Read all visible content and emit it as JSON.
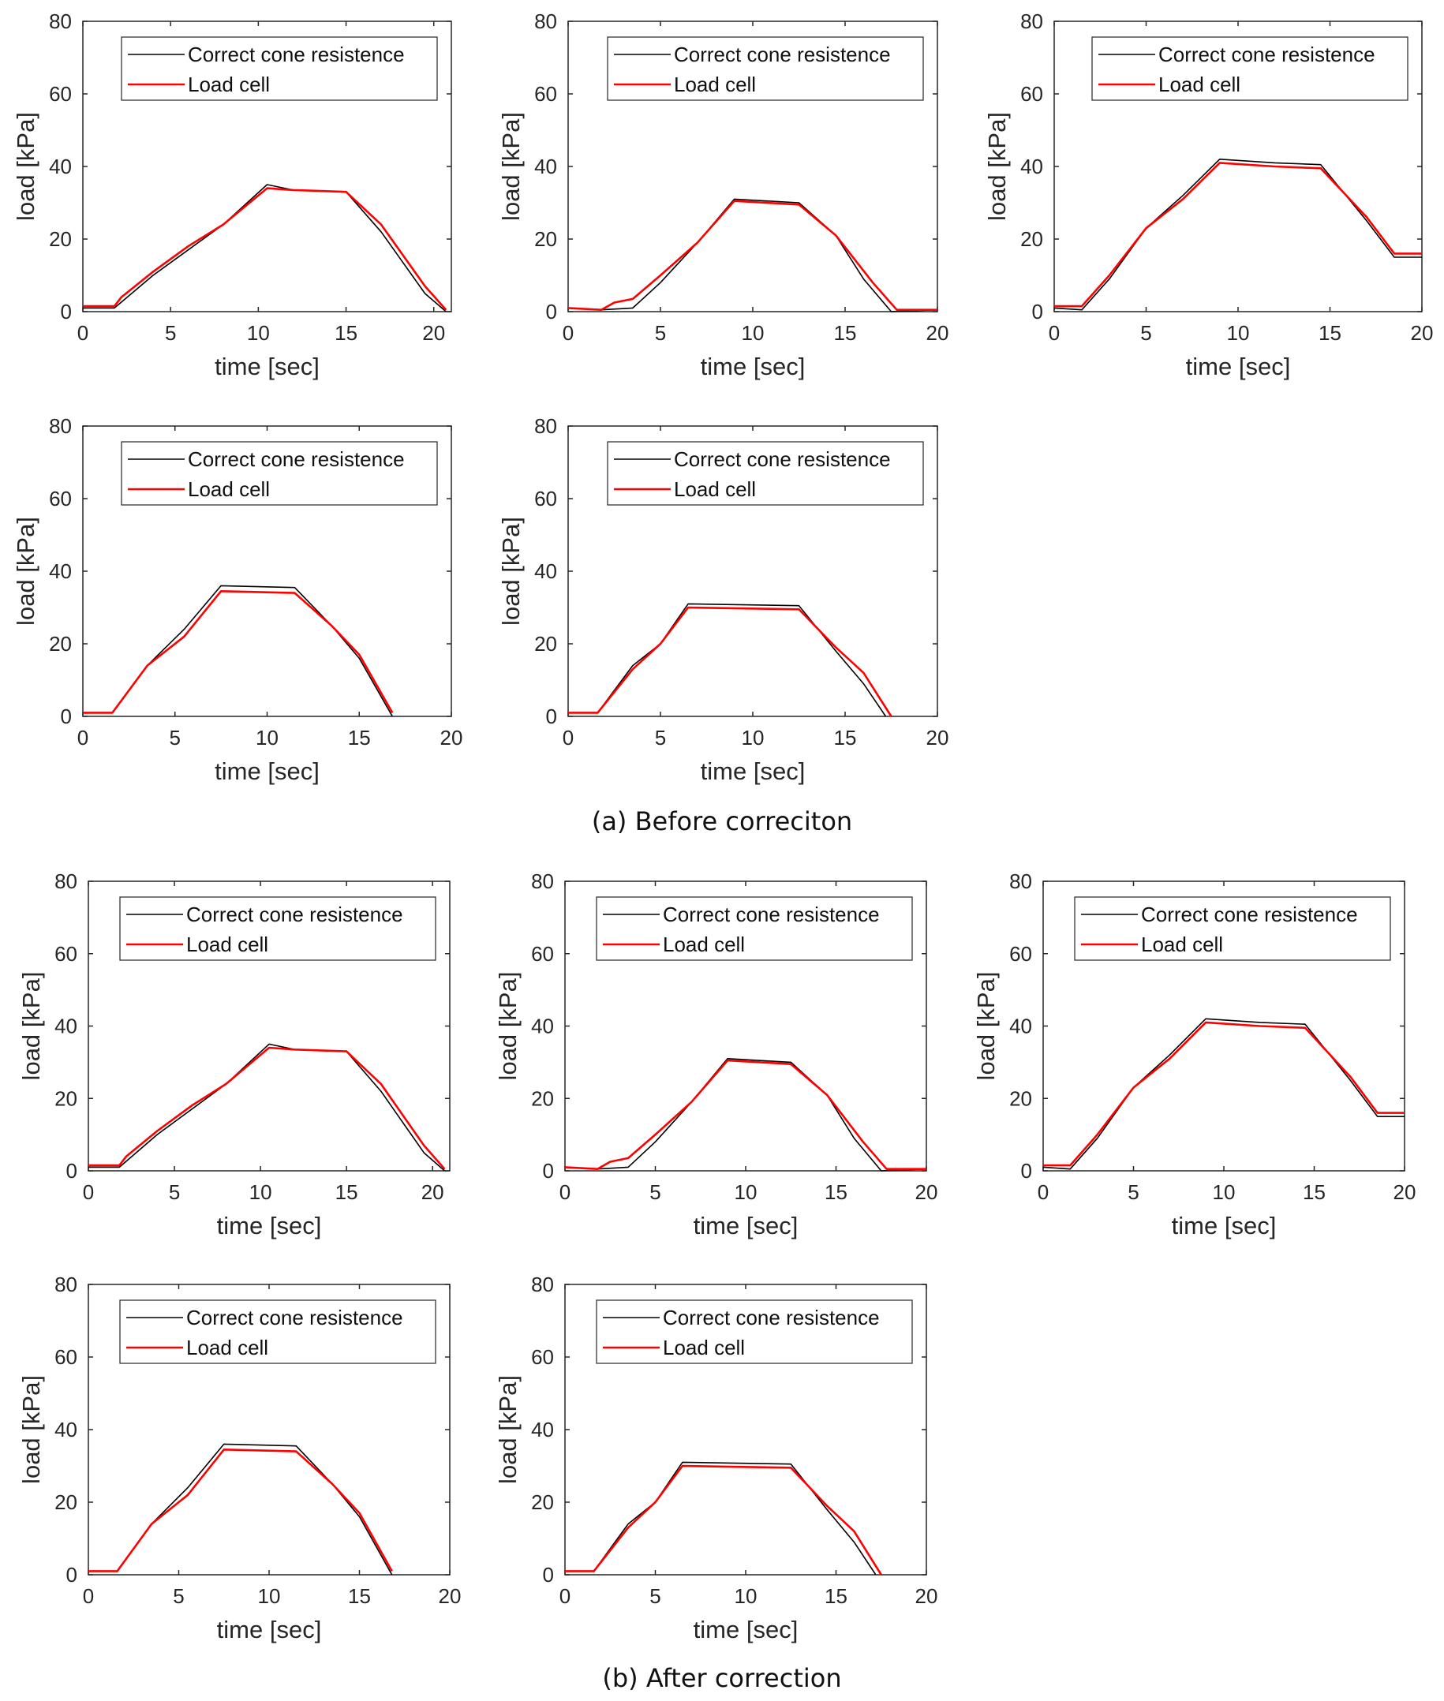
{
  "captions": {
    "a": "(a)  Before correciton",
    "b": "(b)  After correction"
  },
  "colors": {
    "cone": "#000000",
    "load_cell": "#ff0000",
    "axis": "#262626",
    "tick_text": "#262626"
  },
  "chart_data": [
    {
      "id": "a1",
      "group": "a",
      "type": "line",
      "xlabel": "time [sec]",
      "ylabel": "load [kPa]",
      "xlim": [
        0,
        21
      ],
      "ylim": [
        0,
        80
      ],
      "xticks": [
        0,
        5,
        10,
        15,
        20
      ],
      "yticks": [
        0,
        20,
        40,
        60,
        80
      ],
      "legend": [
        "Correct cone resistence",
        "Load cell"
      ],
      "series": [
        {
          "name": "Correct cone resistence",
          "x": [
            0,
            1.8,
            4,
            6,
            8,
            10.5,
            12,
            15,
            17,
            19.5,
            20.7
          ],
          "y": [
            1,
            1,
            10,
            17,
            24,
            35,
            33.5,
            33,
            22,
            5,
            0
          ]
        },
        {
          "name": "Load cell",
          "x": [
            0,
            1.8,
            2.2,
            4,
            6,
            8,
            10.5,
            12,
            15,
            17,
            19.5,
            20.7
          ],
          "y": [
            1.5,
            1.5,
            4,
            11,
            18,
            24,
            34,
            33.5,
            33,
            24,
            7,
            0.5
          ]
        }
      ]
    },
    {
      "id": "a2",
      "group": "a",
      "type": "line",
      "xlabel": "time [sec]",
      "ylabel": "load [kPa]",
      "xlim": [
        0,
        20
      ],
      "ylim": [
        0,
        80
      ],
      "xticks": [
        0,
        5,
        10,
        15,
        20
      ],
      "yticks": [
        0,
        20,
        40,
        60,
        80
      ],
      "legend": [
        "Correct cone resistence",
        "Load cell"
      ],
      "series": [
        {
          "name": "Correct cone resistence",
          "x": [
            0,
            1.8,
            3.5,
            5,
            7,
            9,
            12.5,
            14.5,
            16,
            17.5,
            20
          ],
          "y": [
            1,
            0.5,
            1,
            8,
            19,
            31,
            30,
            21,
            9,
            0,
            0.5
          ]
        },
        {
          "name": "Load cell",
          "x": [
            0,
            1.8,
            2.5,
            3.5,
            5,
            7,
            9,
            12.5,
            14.5,
            16.5,
            17.8,
            20
          ],
          "y": [
            1,
            0.5,
            2.5,
            3.5,
            10,
            19,
            30.5,
            29.5,
            21,
            8,
            0.5,
            0.5
          ]
        }
      ]
    },
    {
      "id": "a3",
      "group": "a",
      "type": "line",
      "xlabel": "time [sec]",
      "ylabel": "load [kPa]",
      "xlim": [
        0,
        20
      ],
      "ylim": [
        0,
        80
      ],
      "xticks": [
        0,
        5,
        10,
        15,
        20
      ],
      "yticks": [
        0,
        20,
        40,
        60,
        80
      ],
      "legend": [
        "Correct cone resistence",
        "Load cell"
      ],
      "series": [
        {
          "name": "Correct cone resistence",
          "x": [
            0,
            1.5,
            3,
            5,
            7,
            9,
            12,
            14.5,
            17,
            18.5,
            20
          ],
          "y": [
            1,
            0.5,
            9,
            23,
            32,
            42,
            41,
            40.5,
            25,
            15,
            15
          ]
        },
        {
          "name": "Load cell",
          "x": [
            0,
            1.5,
            3,
            5,
            7,
            9,
            12,
            14.5,
            17,
            18.5,
            20
          ],
          "y": [
            1.5,
            1.5,
            10,
            23,
            31,
            41,
            40,
            39.5,
            26,
            16,
            16
          ]
        }
      ]
    },
    {
      "id": "a4",
      "group": "a",
      "type": "line",
      "xlabel": "time [sec]",
      "ylabel": "load [kPa]",
      "xlim": [
        0,
        20
      ],
      "ylim": [
        0,
        80
      ],
      "xticks": [
        0,
        5,
        10,
        15,
        20
      ],
      "yticks": [
        0,
        20,
        40,
        60,
        80
      ],
      "legend": [
        "Correct cone resistence",
        "Load cell"
      ],
      "series": [
        {
          "name": "Correct cone resistence",
          "x": [
            0,
            1.6,
            3.5,
            5.5,
            7.5,
            11.5,
            13.5,
            15,
            16.8
          ],
          "y": [
            1,
            1,
            14,
            24,
            36,
            35.5,
            25,
            16,
            0
          ]
        },
        {
          "name": "Load cell",
          "x": [
            0,
            1.6,
            3.5,
            5.5,
            7.5,
            11.5,
            13.5,
            15,
            16.8
          ],
          "y": [
            1,
            1,
            14,
            22,
            34.5,
            34,
            25,
            17,
            1
          ]
        }
      ]
    },
    {
      "id": "a5",
      "group": "a",
      "type": "line",
      "xlabel": "time [sec]",
      "ylabel": "load [kPa]",
      "xlim": [
        0,
        20
      ],
      "ylim": [
        0,
        80
      ],
      "xticks": [
        0,
        5,
        10,
        15,
        20
      ],
      "yticks": [
        0,
        20,
        40,
        60,
        80
      ],
      "legend": [
        "Correct cone resistence",
        "Load cell"
      ],
      "series": [
        {
          "name": "Correct cone resistence",
          "x": [
            0,
            1.6,
            3.5,
            5,
            6.5,
            12.5,
            14.5,
            16,
            17.2
          ],
          "y": [
            1,
            1,
            14,
            20,
            31,
            30.5,
            18,
            9,
            0
          ]
        },
        {
          "name": "Load cell",
          "x": [
            0,
            1.6,
            3.5,
            5,
            6.5,
            12.5,
            14.5,
            16,
            17.5
          ],
          "y": [
            1,
            1,
            13,
            20,
            30,
            29.5,
            19,
            12,
            0
          ]
        }
      ]
    },
    {
      "id": "b1",
      "group": "b",
      "type": "line",
      "xlabel": "time [sec]",
      "ylabel": "load [kPa]",
      "xlim": [
        0,
        21
      ],
      "ylim": [
        0,
        80
      ],
      "xticks": [
        0,
        5,
        10,
        15,
        20
      ],
      "yticks": [
        0,
        20,
        40,
        60,
        80
      ],
      "legend": [
        "Correct cone resistence",
        "Load cell"
      ],
      "series": [
        {
          "name": "Correct cone resistence",
          "x": [
            0,
            1.8,
            4,
            6,
            8,
            10.5,
            12,
            15,
            17,
            19.5,
            20.7
          ],
          "y": [
            1,
            1,
            10,
            17,
            24,
            35,
            33.5,
            33,
            22,
            5,
            0
          ]
        },
        {
          "name": "Load cell",
          "x": [
            0,
            1.8,
            2.2,
            4,
            6,
            8,
            10.5,
            12,
            15,
            17,
            19.5,
            20.7
          ],
          "y": [
            1.5,
            1.5,
            4,
            11,
            18,
            24,
            34,
            33.5,
            33,
            24,
            7,
            0.5
          ]
        }
      ]
    },
    {
      "id": "b2",
      "group": "b",
      "type": "line",
      "xlabel": "time [sec]",
      "ylabel": "load [kPa]",
      "xlim": [
        0,
        20
      ],
      "ylim": [
        0,
        80
      ],
      "xticks": [
        0,
        5,
        10,
        15,
        20
      ],
      "yticks": [
        0,
        20,
        40,
        60,
        80
      ],
      "legend": [
        "Correct cone resistence",
        "Load cell"
      ],
      "series": [
        {
          "name": "Correct cone resistence",
          "x": [
            0,
            1.8,
            3.5,
            5,
            7,
            9,
            12.5,
            14.5,
            16,
            17.5,
            20
          ],
          "y": [
            1,
            0.5,
            1,
            8,
            19,
            31,
            30,
            21,
            9,
            0,
            0.5
          ]
        },
        {
          "name": "Load cell",
          "x": [
            0,
            1.8,
            2.5,
            3.5,
            5,
            7,
            9,
            12.5,
            14.5,
            16.5,
            17.8,
            20
          ],
          "y": [
            1,
            0.5,
            2.5,
            3.5,
            10,
            19,
            30.5,
            29.5,
            21,
            8,
            0.5,
            0.5
          ]
        }
      ]
    },
    {
      "id": "b3",
      "group": "b",
      "type": "line",
      "xlabel": "time [sec]",
      "ylabel": "load [kPa]",
      "xlim": [
        0,
        20
      ],
      "ylim": [
        0,
        80
      ],
      "xticks": [
        0,
        5,
        10,
        15,
        20
      ],
      "yticks": [
        0,
        20,
        40,
        60,
        80
      ],
      "legend": [
        "Correct cone resistence",
        "Load cell"
      ],
      "series": [
        {
          "name": "Correct cone resistence",
          "x": [
            0,
            1.5,
            3,
            5,
            7,
            9,
            12,
            14.5,
            17,
            18.5,
            20
          ],
          "y": [
            1,
            0.5,
            9,
            23,
            32,
            42,
            41,
            40.5,
            25,
            15,
            15
          ]
        },
        {
          "name": "Load cell",
          "x": [
            0,
            1.5,
            3,
            5,
            7,
            9,
            12,
            14.5,
            17,
            18.5,
            20
          ],
          "y": [
            1.5,
            1.5,
            10,
            23,
            31,
            41,
            40,
            39.5,
            26,
            16,
            16
          ]
        }
      ]
    },
    {
      "id": "b4",
      "group": "b",
      "type": "line",
      "xlabel": "time [sec]",
      "ylabel": "load [kPa]",
      "xlim": [
        0,
        20
      ],
      "ylim": [
        0,
        80
      ],
      "xticks": [
        0,
        5,
        10,
        15,
        20
      ],
      "yticks": [
        0,
        20,
        40,
        60,
        80
      ],
      "legend": [
        "Correct cone resistence",
        "Load cell"
      ],
      "series": [
        {
          "name": "Correct cone resistence",
          "x": [
            0,
            1.6,
            3.5,
            5.5,
            7.5,
            11.5,
            13.5,
            15,
            16.8
          ],
          "y": [
            1,
            1,
            14,
            24,
            36,
            35.5,
            25,
            16,
            0
          ]
        },
        {
          "name": "Load cell",
          "x": [
            0,
            1.6,
            3.5,
            5.5,
            7.5,
            11.5,
            13.5,
            15,
            16.8
          ],
          "y": [
            1,
            1,
            14,
            22,
            34.5,
            34,
            25,
            17,
            1
          ]
        }
      ]
    },
    {
      "id": "b5",
      "group": "b",
      "type": "line",
      "xlabel": "time [sec]",
      "ylabel": "load [kPa]",
      "xlim": [
        0,
        20
      ],
      "ylim": [
        0,
        80
      ],
      "xticks": [
        0,
        5,
        10,
        15,
        20
      ],
      "yticks": [
        0,
        20,
        40,
        60,
        80
      ],
      "legend": [
        "Correct cone resistence",
        "Load cell"
      ],
      "series": [
        {
          "name": "Correct cone resistence",
          "x": [
            0,
            1.6,
            3.5,
            5,
            6.5,
            12.5,
            14.5,
            16,
            17.2
          ],
          "y": [
            1,
            1,
            14,
            20,
            31,
            30.5,
            18,
            9,
            0
          ]
        },
        {
          "name": "Load cell",
          "x": [
            0,
            1.6,
            3.5,
            5,
            6.5,
            12.5,
            14.5,
            16,
            17.5
          ],
          "y": [
            1,
            1,
            13,
            20,
            30,
            29.5,
            19,
            12,
            0
          ]
        }
      ]
    }
  ]
}
